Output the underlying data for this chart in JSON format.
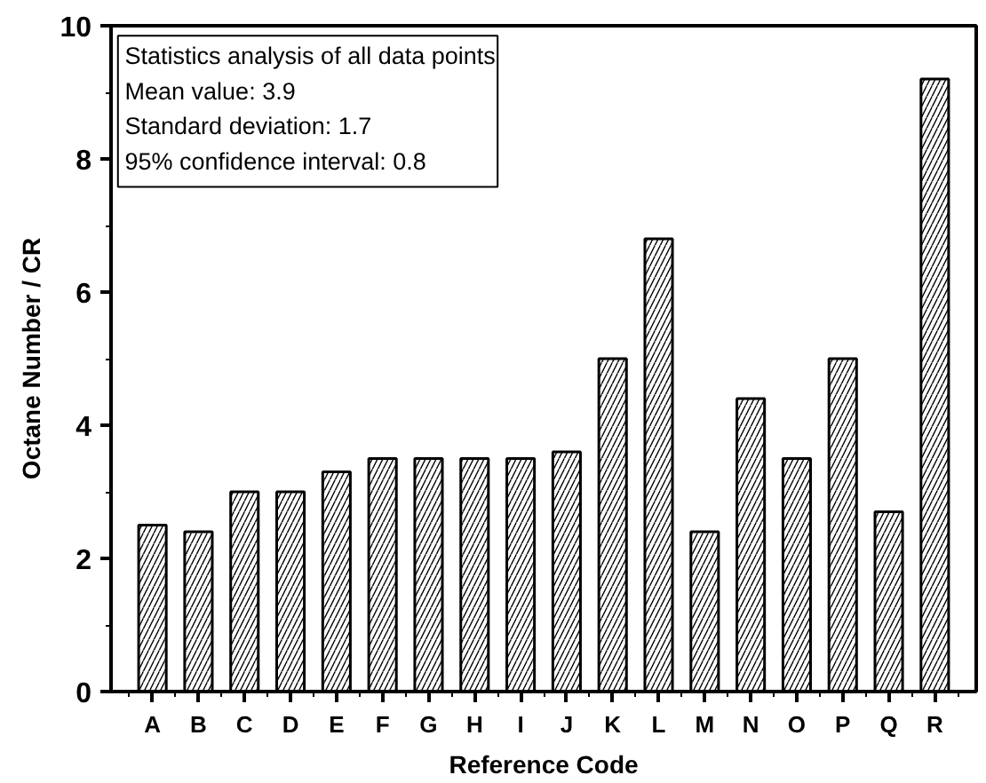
{
  "chart_data": {
    "type": "bar",
    "xlabel": "Reference Code",
    "ylabel": "Octane Number / CR",
    "categories": [
      "A",
      "B",
      "C",
      "D",
      "E",
      "F",
      "G",
      "H",
      "I",
      "J",
      "K",
      "L",
      "M",
      "N",
      "O",
      "P",
      "Q",
      "R"
    ],
    "values": [
      2.5,
      2.4,
      3.0,
      3.0,
      3.3,
      3.5,
      3.5,
      3.5,
      3.5,
      3.6,
      5.0,
      6.8,
      2.4,
      4.4,
      3.5,
      5.0,
      2.7,
      9.2
    ],
    "color": "#ffffff",
    "ylim": [
      0,
      10
    ],
    "yticks": [
      0,
      2,
      4,
      6,
      8,
      10
    ],
    "grid": false,
    "annotations": [
      "Statistics analysis of all data points",
      "Mean value: 3.9",
      "Standard deviation: 1.7",
      "95% confidence interval: 0.8"
    ]
  }
}
